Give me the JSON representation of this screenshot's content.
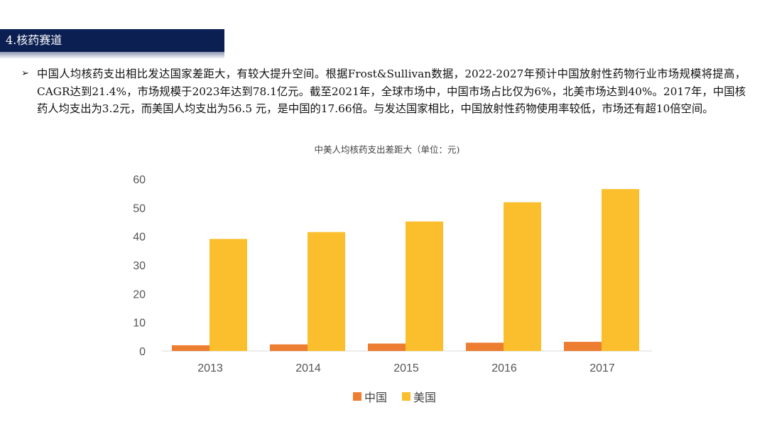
{
  "section": {
    "title": "4.核药赛道"
  },
  "bullet": {
    "icon": "➢",
    "text": "中国人均核药支出相比发达国家差距大，有较大提升空间。根据Frost&Sullivan数据，2022-2027年预计中国放射性药物行业市场规模将提高，CAGR达到21.4%，市场规模于2023年达到78.1亿元。截至2021年，全球市场中，中国市场占比仅为6%，北美市场达到40%。2017年，中国核药人均支出为3.2元，而美国人均支出为56.5 元，是中国的17.66倍。与发达国家相比，中国放射性药物使用率较低，市场还有超10倍空间。"
  },
  "chart_data": {
    "type": "bar",
    "title": "中美人均核药支出差距大（单位：元)",
    "categories": [
      "2013",
      "2014",
      "2015",
      "2016",
      "2017"
    ],
    "series": [
      {
        "name": "中国",
        "color": "#ed7d31",
        "values": [
          2.0,
          2.3,
          2.6,
          2.9,
          3.2
        ]
      },
      {
        "name": "美国",
        "color": "#fbbf2d",
        "values": [
          39.1,
          41.5,
          45.2,
          51.9,
          56.5
        ]
      }
    ],
    "ylim": [
      0,
      60
    ],
    "yticks": [
      0,
      10,
      20,
      30,
      40,
      50,
      60
    ],
    "xlabel": "",
    "ylabel": "",
    "legend": "bottom",
    "grid": false
  }
}
